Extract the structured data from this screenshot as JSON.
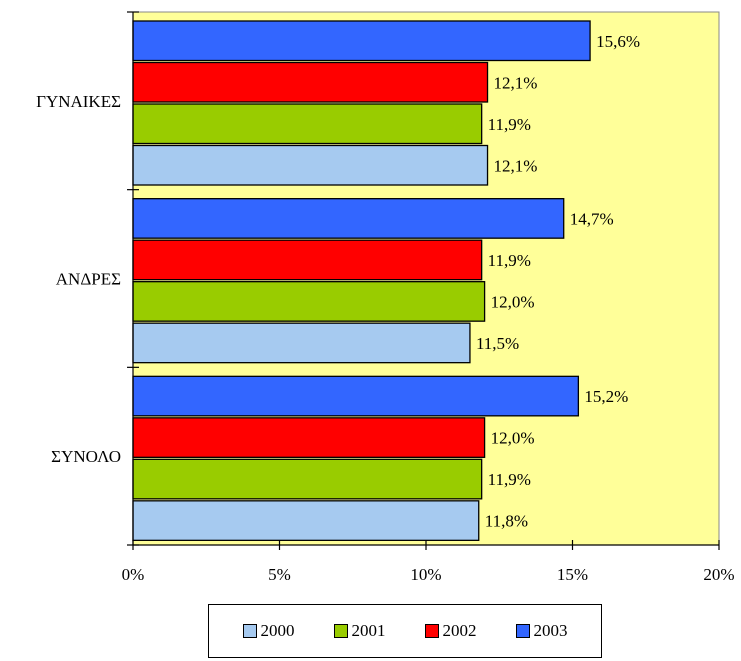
{
  "chart_data": {
    "type": "bar",
    "orientation": "horizontal",
    "categories": [
      "ΓΥΝΑΙΚΕΣ",
      "ΑΝΔΡΕΣ",
      "ΣΥΝΟΛΟ"
    ],
    "series": [
      {
        "name": "2000",
        "color": "#a6caf0",
        "values": [
          12.1,
          11.5,
          11.8
        ],
        "labels": [
          "12,1%",
          "11,5%",
          "11,8%"
        ]
      },
      {
        "name": "2001",
        "color": "#99cc00",
        "values": [
          11.9,
          12.0,
          11.9
        ],
        "labels": [
          "11,9%",
          "12,0%",
          "11,9%"
        ]
      },
      {
        "name": "2002",
        "color": "#ff0000",
        "values": [
          12.1,
          11.9,
          12.0
        ],
        "labels": [
          "12,1%",
          "11,9%",
          "12,0%"
        ]
      },
      {
        "name": "2003",
        "color": "#3366ff",
        "values": [
          15.6,
          14.7,
          15.2
        ],
        "labels": [
          "15,6%",
          "14,7%",
          "15,2%"
        ]
      }
    ],
    "xlim": [
      0,
      20
    ],
    "xticks": [
      0,
      5,
      10,
      15,
      20
    ],
    "xtick_labels": [
      "0%",
      "5%",
      "10%",
      "15%",
      "20%"
    ],
    "plot_background": "#ffff99",
    "grid": false,
    "legend_position": "bottom"
  }
}
